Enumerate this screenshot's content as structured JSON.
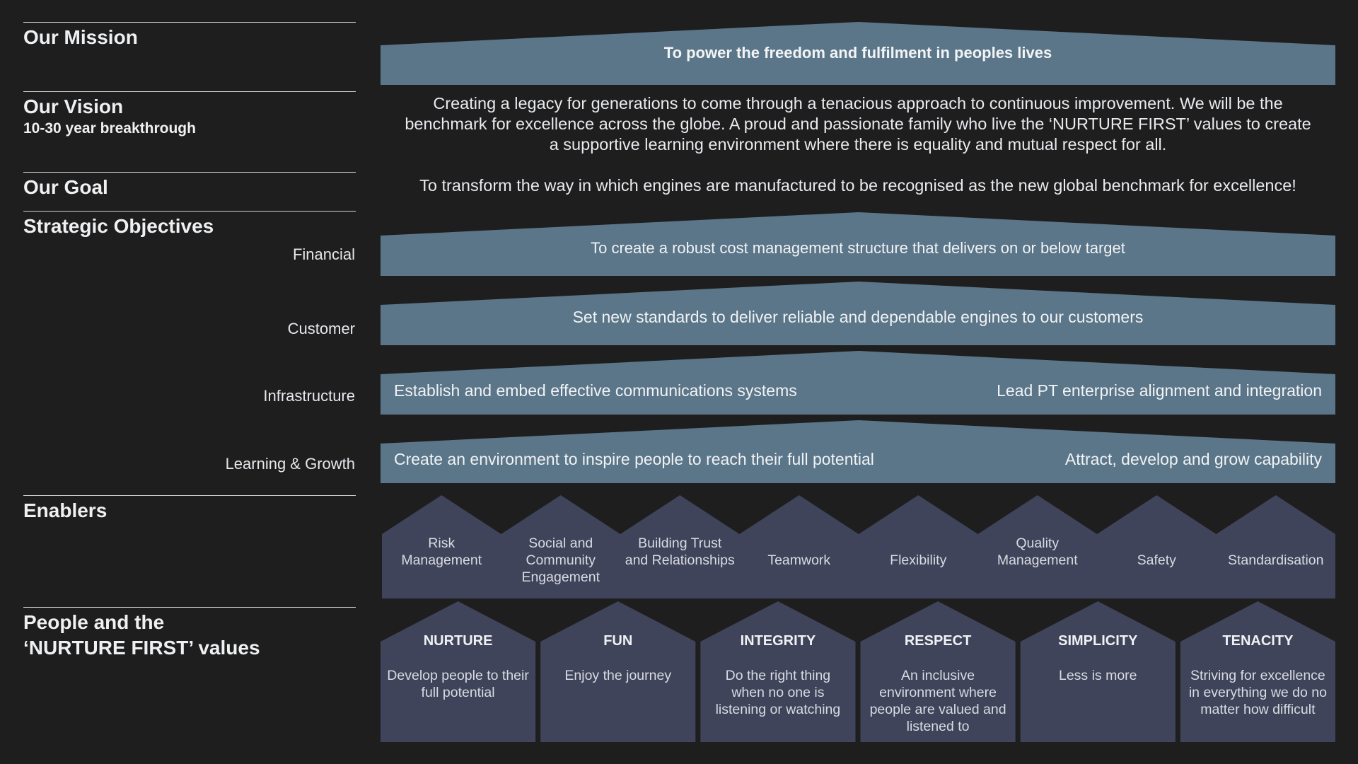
{
  "colors": {
    "background": "#1e1e1f",
    "band": "#5b7689",
    "house": "#40445a",
    "rule": "#cfd3d8"
  },
  "sections": {
    "mission": "Our Mission",
    "vision": "Our Vision",
    "vision_sub": "10-30 year breakthrough",
    "goal": "Our Goal",
    "objectives": "Strategic Objectives",
    "enablers": "Enablers",
    "people_line1": "People and the",
    "people_line2": "‘NURTURE FIRST’ values"
  },
  "objective_labels": {
    "financial": "Financial",
    "customer": "Customer",
    "infrastructure": "Infrastructure",
    "learning": "Learning & Growth"
  },
  "mission_text": "To power the freedom and fulfilment in peoples lives",
  "vision_text": {
    "line1": "Creating a legacy for generations to come through a tenacious approach to continuous improvement. We will be the",
    "line2": "benchmark for excellence across the globe. A proud and passionate family who live the ‘NURTURE FIRST’ values to create",
    "line3": "a supportive learning environment where there is equality and mutual respect for all."
  },
  "goal_text": "To transform the way in which engines are manufactured to be recognised as the new global benchmark for excellence!",
  "objectives": {
    "financial": "To create a robust cost management structure that delivers on or below target",
    "customer": "Set new standards to deliver reliable and dependable engines to our customers",
    "infrastructure_left": "Establish and embed effective communications systems",
    "infrastructure_right": "Lead PT enterprise alignment and integration",
    "learning_left": "Create an environment to inspire people to reach their full potential",
    "learning_right": "Attract, develop and grow capability"
  },
  "enablers": [
    {
      "l1": "Risk",
      "l2": "Management",
      "l3": ""
    },
    {
      "l1": "Social and",
      "l2": "Community",
      "l3": "Engagement"
    },
    {
      "l1": "Building Trust",
      "l2": "and Relationships",
      "l3": ""
    },
    {
      "l1": "",
      "l2": "Teamwork",
      "l3": ""
    },
    {
      "l1": "",
      "l2": "Flexibility",
      "l3": ""
    },
    {
      "l1": "Quality",
      "l2": "Management",
      "l3": ""
    },
    {
      "l1": "",
      "l2": "Safety",
      "l3": ""
    },
    {
      "l1": "",
      "l2": "Standardisation",
      "l3": ""
    }
  ],
  "values": [
    {
      "title": "NURTURE",
      "d1": "Develop people to their",
      "d2": "full potential",
      "d3": "",
      "d4": ""
    },
    {
      "title": "FUN",
      "d1": "Enjoy the journey",
      "d2": "",
      "d3": "",
      "d4": ""
    },
    {
      "title": "INTEGRITY",
      "d1": "Do the right thing",
      "d2": "when no one is",
      "d3": "listening or watching",
      "d4": ""
    },
    {
      "title": "RESPECT",
      "d1": "An inclusive",
      "d2": "environment where",
      "d3": "people are valued and",
      "d4": "listened to"
    },
    {
      "title": "SIMPLICITY",
      "d1": "Less is more",
      "d2": "",
      "d3": "",
      "d4": ""
    },
    {
      "title": "TENACITY",
      "d1": "Striving for excellence",
      "d2": "in everything we do no",
      "d3": "matter how difficult",
      "d4": ""
    }
  ]
}
